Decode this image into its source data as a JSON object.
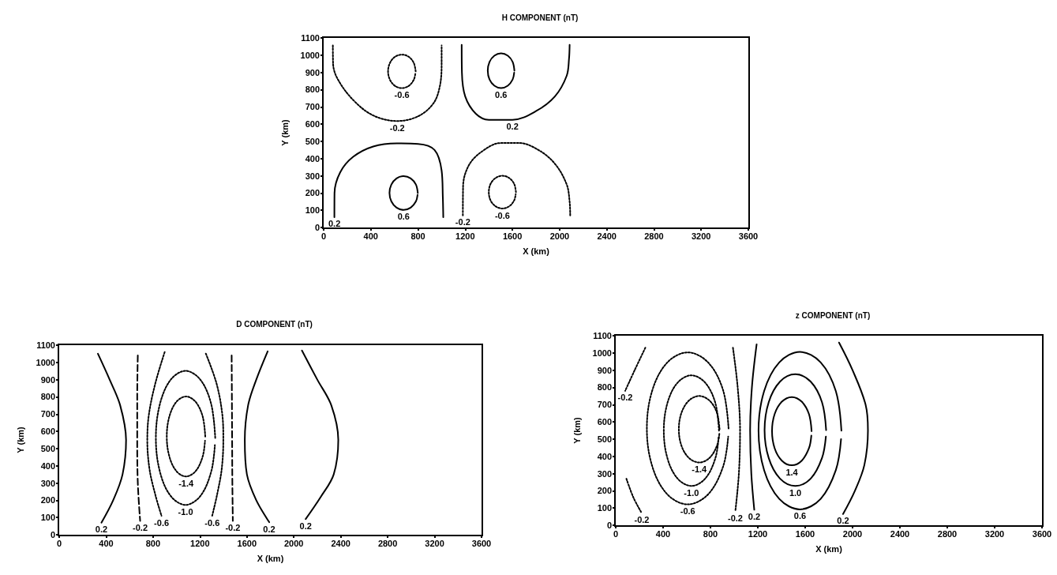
{
  "chart_data": [
    {
      "type": "line",
      "title": "H COMPONENT (nT)",
      "xlabel": "X (km)",
      "ylabel": "Y (km)",
      "xlim": [
        0,
        3600
      ],
      "ylim": [
        0,
        1100
      ],
      "xticks": [
        0,
        400,
        800,
        1200,
        1600,
        2000,
        2400,
        2800,
        3200,
        3600
      ],
      "yticks": [
        0,
        100,
        200,
        300,
        400,
        500,
        600,
        700,
        800,
        900,
        1000,
        1100
      ],
      "marker": "none",
      "series": [
        {
          "color": "#000000",
          "line_style": "dotted",
          "x": [
            78,
            80,
            120,
            250,
            420,
            624,
            800,
            930,
            985,
            1000,
            1000
          ],
          "values": [
            1056,
            950,
            860,
            740,
            650,
            618,
            645,
            720,
            820,
            950,
            1056
          ]
        },
        {
          "color": "#000000",
          "line_style": "dotted",
          "x": [
            780,
            764,
            722,
            663,
            604,
            562,
            546,
            562,
            604,
            663,
            722,
            764,
            778
          ],
          "values": [
            906,
            955,
            990,
            1003,
            990,
            955,
            906,
            857,
            822,
            809,
            822,
            857,
            895
          ]
        },
        {
          "color": "#000000",
          "line_style": "solid",
          "x": [
            1617,
            1602,
            1561,
            1504,
            1447,
            1406,
            1391,
            1406,
            1447,
            1504,
            1561,
            1602,
            1615
          ],
          "values": [
            910,
            961,
            997,
            1011,
            997,
            961,
            910,
            859,
            823,
            809,
            823,
            859,
            898
          ]
        },
        {
          "color": "#000000",
          "line_style": "solid",
          "x": [
            1170,
            1172,
            1200,
            1290,
            1400,
            1600,
            1800,
            1960,
            2060,
            2080,
            2085
          ],
          "values": [
            1060,
            900,
            760,
            660,
            625,
            625,
            675,
            760,
            880,
            980,
            1060
          ]
        },
        {
          "color": "#000000",
          "line_style": "solid",
          "x": [
            91,
            92,
            140,
            250,
            420,
            620,
            800,
            940,
            1000,
            1010,
            1014
          ],
          "values": [
            60,
            200,
            320,
            410,
            470,
            488,
            485,
            450,
            330,
            180,
            60
          ]
        },
        {
          "color": "#000000",
          "line_style": "solid",
          "x": [
            798,
            782,
            738,
            678,
            618,
            574,
            558,
            574,
            618,
            678,
            738,
            782,
            796
          ],
          "values": [
            200,
            249,
            285,
            298,
            285,
            249,
            200,
            151,
            115,
            102,
            115,
            151,
            189
          ]
        },
        {
          "color": "#000000",
          "line_style": "dotted",
          "x": [
            1180,
            1182,
            1230,
            1340,
            1500,
            1660,
            1820,
            1960,
            2060,
            2085,
            2090
          ],
          "values": [
            70,
            240,
            360,
            440,
            490,
            490,
            450,
            370,
            250,
            150,
            70
          ]
        },
        {
          "color": "#000000",
          "line_style": "dotted",
          "x": [
            1630,
            1615,
            1573,
            1515,
            1457,
            1415,
            1400,
            1415,
            1457,
            1515,
            1573,
            1615,
            1628
          ],
          "values": [
            205,
            253,
            287,
            300,
            287,
            253,
            205,
            157,
            123,
            110,
            123,
            157,
            194
          ]
        }
      ],
      "annotations": [
        {
          "text": "-0.6",
          "x": 663,
          "y": 809
        },
        {
          "text": "0.6",
          "x": 1504,
          "y": 809
        },
        {
          "text": "-0.2",
          "x": 624,
          "y": 618
        },
        {
          "text": "0.2",
          "x": 1600,
          "y": 625
        },
        {
          "text": "0.2",
          "x": 91,
          "y": 60
        },
        {
          "text": "0.6",
          "x": 678,
          "y": 102
        },
        {
          "text": "-0.2",
          "x": 1180,
          "y": 70
        },
        {
          "text": "-0.6",
          "x": 1515,
          "y": 110
        }
      ]
    },
    {
      "type": "line",
      "title": "D COMPONENT (nT)",
      "xlabel": "X (km)",
      "ylabel": "Y (km)",
      "xlim": [
        0,
        3600
      ],
      "ylim": [
        0,
        1100
      ],
      "xticks": [
        0,
        400,
        800,
        1200,
        1600,
        2000,
        2400,
        2800,
        3200,
        3600
      ],
      "yticks": [
        0,
        100,
        200,
        300,
        400,
        500,
        600,
        700,
        800,
        900,
        1000,
        1100
      ],
      "marker": "none",
      "series": [
        {
          "color": "#000000",
          "line_style": "solid",
          "x": [
            330,
            430,
            520,
            570,
            540,
            460,
            360
          ],
          "values": [
            1050,
            900,
            750,
            550,
            350,
            200,
            70
          ]
        },
        {
          "color": "#000000",
          "line_style": "dashed",
          "x": [
            670,
            665,
            665,
            670,
            690
          ],
          "values": [
            1040,
            800,
            550,
            300,
            80
          ]
        },
        {
          "color": "#000000",
          "line_style": "dotted",
          "x": [
            899,
            820,
            765,
            751,
            770,
            820,
            872
          ],
          "values": [
            1060,
            880,
            700,
            550,
            380,
            230,
            110
          ]
        },
        {
          "color": "#000000",
          "line_style": "dotted",
          "x": [
            1250,
            1340,
            1390,
            1399,
            1385,
            1345,
            1304
          ],
          "values": [
            1051,
            880,
            700,
            550,
            380,
            230,
            110
          ]
        },
        {
          "color": "#000000",
          "line_style": "dotted",
          "x": [
            1330,
            1296,
            1204,
            1077,
            950,
            858,
            824,
            858,
            950,
            1077,
            1204,
            1296,
            1327
          ],
          "values": [
            562,
            757,
            899,
            951,
            899,
            757,
            562,
            367,
            225,
            173,
            225,
            367,
            520
          ]
        },
        {
          "color": "#000000",
          "line_style": "dotted",
          "x": [
            1245,
            1223,
            1163,
            1081,
            999,
            939,
            917,
            939,
            999,
            1081,
            1163,
            1223,
            1243
          ],
          "values": [
            570,
            686,
            771,
            802,
            771,
            686,
            570,
            454,
            369,
            338,
            369,
            454,
            545
          ]
        },
        {
          "color": "#000000",
          "line_style": "dashed",
          "x": [
            1470,
            1472,
            1474,
            1476,
            1480
          ],
          "values": [
            1040,
            800,
            550,
            300,
            80
          ]
        },
        {
          "color": "#000000",
          "line_style": "solid",
          "x": [
            1777,
            1680,
            1610,
            1582,
            1600,
            1680,
            1790
          ],
          "values": [
            1064,
            900,
            750,
            550,
            350,
            200,
            73
          ]
        },
        {
          "color": "#000000",
          "line_style": "solid",
          "x": [
            2069,
            2200,
            2320,
            2379,
            2340,
            2230,
            2101
          ],
          "values": [
            1069,
            900,
            750,
            550,
            350,
            220,
            91
          ]
        }
      ],
      "annotations": [
        {
          "text": "0.2",
          "x": 360,
          "y": 70
        },
        {
          "text": "-0.2",
          "x": 690,
          "y": 80
        },
        {
          "text": "-0.6",
          "x": 872,
          "y": 110
        },
        {
          "text": "-0.6",
          "x": 1304,
          "y": 110
        },
        {
          "text": "-0.2",
          "x": 1480,
          "y": 80
        },
        {
          "text": "0.2",
          "x": 1790,
          "y": 73
        },
        {
          "text": "0.2",
          "x": 2101,
          "y": 91
        },
        {
          "text": "-1.4",
          "x": 1081,
          "y": 338
        },
        {
          "text": "-1.0",
          "x": 1077,
          "y": 173
        }
      ]
    },
    {
      "type": "line",
      "title": "z COMPONENT (nT)",
      "xlabel": "X (km)",
      "ylabel": "Y (km)",
      "xlim": [
        0,
        3600
      ],
      "ylim": [
        0,
        1100
      ],
      "xticks": [
        0,
        400,
        800,
        1200,
        1600,
        2000,
        2400,
        2800,
        3200,
        3600
      ],
      "yticks": [
        0,
        100,
        200,
        300,
        400,
        500,
        600,
        700,
        800,
        900,
        1000,
        1100
      ],
      "marker": "none",
      "series": [
        {
          "color": "#000000",
          "line_style": "dotted",
          "x": [
            250,
            160,
            80
          ],
          "values": [
            1030,
            900,
            780
          ]
        },
        {
          "color": "#000000",
          "line_style": "dotted",
          "x": [
            90,
            150,
            220
          ],
          "values": [
            270,
            160,
            70
          ]
        },
        {
          "color": "#000000",
          "line_style": "dotted",
          "x": [
            953,
            907,
            781,
            608,
            435,
            309,
            263,
            309,
            435,
            608,
            781,
            907,
            950
          ],
          "values": [
            562,
            783,
            944,
            1003,
            944,
            783,
            562,
            341,
            180,
            121,
            180,
            341,
            515
          ]
        },
        {
          "color": "#000000",
          "line_style": "dotted",
          "x": [
            872,
            841,
            756,
            639,
            522,
            437,
            406,
            437,
            522,
            639,
            756,
            841,
            870
          ],
          "values": [
            549,
            710,
            827,
            870,
            827,
            710,
            549,
            388,
            271,
            228,
            271,
            388,
            515
          ]
        },
        {
          "color": "#000000",
          "line_style": "dotted",
          "x": [
            877,
            854,
            791,
            705,
            619,
            556,
            533,
            556,
            619,
            705,
            791,
            854,
            875
          ],
          "values": [
            557,
            654,
            724,
            750,
            724,
            654,
            557,
            460,
            390,
            364,
            390,
            460,
            530
          ]
        },
        {
          "color": "#000000",
          "line_style": "dotted",
          "x": [
            990,
            1030,
            1050,
            1040,
            1010
          ],
          "values": [
            1030,
            800,
            550,
            300,
            80
          ]
        },
        {
          "color": "#000000",
          "line_style": "solid",
          "x": [
            1190,
            1150,
            1135,
            1145,
            1170
          ],
          "values": [
            1050,
            800,
            550,
            300,
            90
          ]
        },
        {
          "color": "#000000",
          "line_style": "solid",
          "x": [
            1906,
            1859,
            1731,
            1556,
            1381,
            1253,
            1206,
            1253,
            1381,
            1556,
            1731,
            1859,
            1903
          ],
          "values": [
            549,
            778,
            945,
            1006,
            945,
            778,
            549,
            320,
            153,
            92,
            153,
            320,
            500
          ]
        },
        {
          "color": "#000000",
          "line_style": "solid",
          "x": [
            1777,
            1742,
            1647,
            1517,
            1387,
            1292,
            1257,
            1292,
            1387,
            1517,
            1647,
            1742,
            1775
          ],
          "values": [
            552,
            714,
            833,
            876,
            833,
            714,
            552,
            390,
            271,
            228,
            271,
            390,
            515
          ]
        },
        {
          "color": "#000000",
          "line_style": "solid",
          "x": [
            1654,
            1632,
            1571,
            1487,
            1403,
            1342,
            1320,
            1342,
            1403,
            1487,
            1571,
            1632,
            1652
          ],
          "values": [
            546,
            645,
            717,
            744,
            717,
            645,
            546,
            447,
            375,
            348,
            375,
            447,
            520
          ]
        },
        {
          "color": "#000000",
          "line_style": "solid",
          "x": [
            1886,
            2000,
            2110,
            2130,
            2100,
            2020,
            1920
          ],
          "values": [
            1060,
            900,
            700,
            550,
            350,
            200,
            65
          ]
        }
      ],
      "annotations": [
        {
          "text": "-0.2",
          "x": 80,
          "y": 780
        },
        {
          "text": "-0.2",
          "x": 220,
          "y": 70
        },
        {
          "text": "-1.4",
          "x": 705,
          "y": 364
        },
        {
          "text": "-1.0",
          "x": 639,
          "y": 228
        },
        {
          "text": "-0.6",
          "x": 608,
          "y": 121
        },
        {
          "text": "-0.2",
          "x": 1010,
          "y": 80
        },
        {
          "text": "0.2",
          "x": 1170,
          "y": 90
        },
        {
          "text": "1.4",
          "x": 1487,
          "y": 348
        },
        {
          "text": "1.0",
          "x": 1517,
          "y": 228
        },
        {
          "text": "0.6",
          "x": 1556,
          "y": 92
        },
        {
          "text": "0.2",
          "x": 1920,
          "y": 65
        }
      ]
    }
  ]
}
